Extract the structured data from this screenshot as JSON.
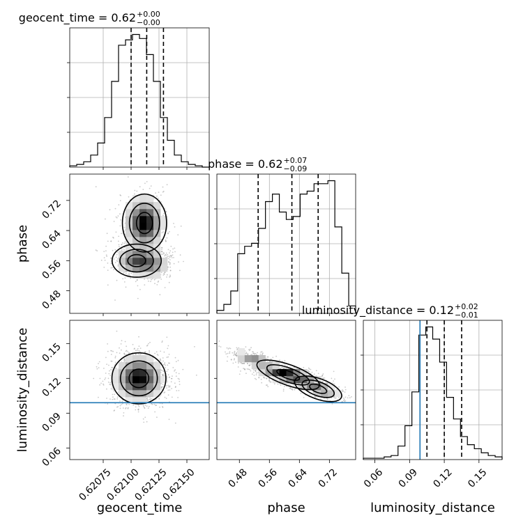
{
  "chart_data": {
    "type": "corner",
    "parameters": [
      {
        "key": "geocent_time",
        "axis_label": "geocent_time",
        "title_main": "geocent_time = 0.62",
        "title_sup": "+0.00",
        "title_sub": "−0.00",
        "range": [
          0.62045,
          0.6217
        ],
        "ticks": [
          0.62075,
          0.621,
          0.62125,
          0.6215
        ],
        "tick_labels": [
          "0.62075",
          "0.62100",
          "0.62125",
          "0.62150"
        ],
        "quantiles": [
          0.621,
          0.62114,
          0.62129
        ],
        "hist_counts": [
          1,
          2,
          4,
          9,
          18,
          37,
          64,
          91,
          95,
          99,
          96,
          84,
          64,
          37,
          20,
          9,
          4,
          2,
          1,
          0
        ]
      },
      {
        "key": "phase",
        "axis_label": "phase",
        "title_main": "phase = 0.62",
        "title_sup": "+0.07",
        "title_sub": "−0.09",
        "range": [
          0.42,
          0.79
        ],
        "ticks": [
          0.48,
          0.56,
          0.64,
          0.72
        ],
        "tick_labels": [
          "0.48",
          "0.56",
          "0.64",
          "0.72"
        ],
        "quantiles": [
          0.53,
          0.62,
          0.69
        ],
        "hist_counts": [
          2,
          6,
          15,
          40,
          45,
          47,
          57,
          75,
          80,
          68,
          63,
          65,
          80,
          82,
          87,
          87,
          89,
          58,
          27,
          5
        ]
      },
      {
        "key": "luminosity_distance",
        "axis_label": "luminosity_distance",
        "title_main": "luminosity_distance = 0.12",
        "title_sup": "+0.02",
        "title_sub": "−0.01",
        "range": [
          0.05,
          0.17
        ],
        "ticks": [
          0.06,
          0.09,
          0.12,
          0.15
        ],
        "tick_labels": [
          "0.06",
          "0.09",
          "0.12",
          "0.15"
        ],
        "quantiles": [
          0.105,
          0.12,
          0.135
        ],
        "injection": 0.099,
        "hist_counts": [
          1,
          1,
          1,
          2,
          3,
          10,
          25,
          50,
          92,
          98,
          89,
          72,
          46,
          30,
          17,
          11,
          8,
          5,
          3,
          2
        ]
      }
    ],
    "pairs": [
      {
        "x": "geocent_time",
        "y": "phase",
        "density": {
          "clusters": [
            {
              "cx": 0.62112,
              "cy": 0.66,
              "sx": 9e-05,
              "sy": 0.035,
              "w": 1.0,
              "rho": 0.0
            },
            {
              "cx": 0.62105,
              "cy": 0.56,
              "sx": 0.0001,
              "sy": 0.02,
              "w": 0.7,
              "rho": 0.0
            },
            {
              "cx": 0.6212,
              "cy": 0.55,
              "sx": 8e-05,
              "sy": 0.02,
              "w": 0.4,
              "rho": 0.0
            }
          ]
        }
      },
      {
        "x": "geocent_time",
        "y": "luminosity_distance",
        "injection_y": 0.099,
        "density": {
          "clusters": [
            {
              "cx": 0.62107,
              "cy": 0.12,
              "sx": 0.00011,
              "sy": 0.01,
              "w": 1.0,
              "rho": 0.0
            }
          ]
        }
      },
      {
        "x": "phase",
        "y": "luminosity_distance",
        "injection_y": 0.099,
        "density": {
          "clusters": [
            {
              "cx": 0.52,
              "cy": 0.136,
              "sx": 0.03,
              "sy": 0.004,
              "w": 0.5,
              "rho": -0.6
            },
            {
              "cx": 0.61,
              "cy": 0.123,
              "sx": 0.04,
              "sy": 0.004,
              "w": 1.0,
              "rho": -0.6
            },
            {
              "cx": 0.69,
              "cy": 0.111,
              "sx": 0.03,
              "sy": 0.004,
              "w": 0.6,
              "rho": -0.6
            }
          ]
        }
      }
    ],
    "colors": {
      "injection": "#1f77b4",
      "line": "#000000",
      "grid": "#b0b0b0"
    }
  }
}
